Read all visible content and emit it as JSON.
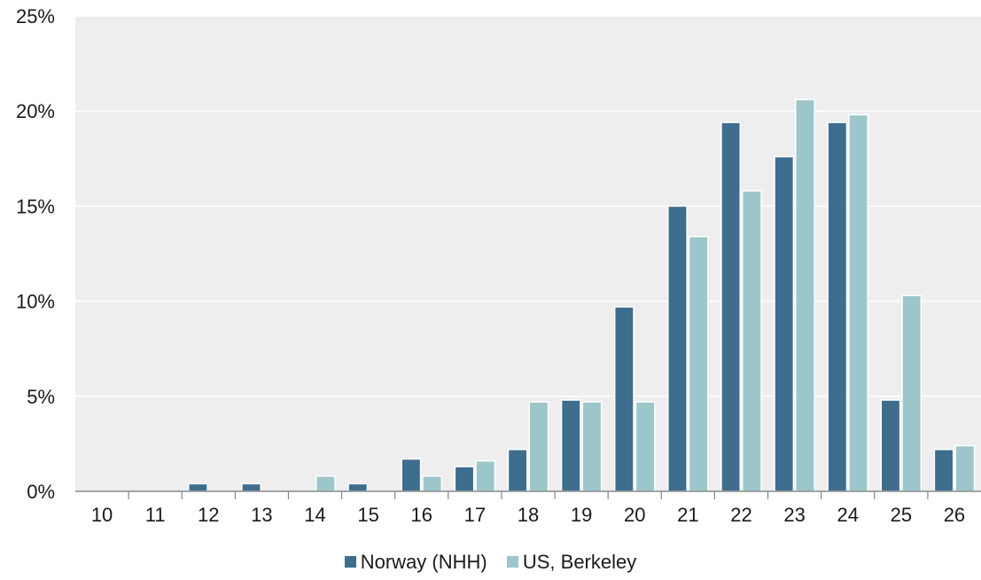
{
  "chart_data": {
    "type": "bar",
    "categories": [
      "10",
      "11",
      "12",
      "13",
      "14",
      "15",
      "16",
      "17",
      "18",
      "19",
      "20",
      "21",
      "22",
      "23",
      "24",
      "25",
      "26"
    ],
    "series": [
      {
        "name": "Norway (NHH)",
        "color": "#3e6d8e",
        "values": [
          0,
          0,
          0.4,
          0.4,
          0,
          0.4,
          1.7,
          1.3,
          2.2,
          4.8,
          9.7,
          15.0,
          19.4,
          17.6,
          19.4,
          4.8,
          2.2
        ]
      },
      {
        "name": "US, Berkeley",
        "color": "#9dc6ca",
        "values": [
          0,
          0,
          0,
          0,
          0.8,
          0,
          0.8,
          1.6,
          4.7,
          4.7,
          4.7,
          13.4,
          15.8,
          20.6,
          19.8,
          10.3,
          2.4
        ]
      }
    ],
    "ylim": [
      0,
      25
    ],
    "yticks": [
      "0%",
      "5%",
      "10%",
      "15%",
      "20%",
      "25%"
    ],
    "ytick_values": [
      0,
      5,
      10,
      15,
      20,
      25
    ],
    "legend_position": "bottom-center",
    "background": "#eeeeee",
    "grid": true
  }
}
